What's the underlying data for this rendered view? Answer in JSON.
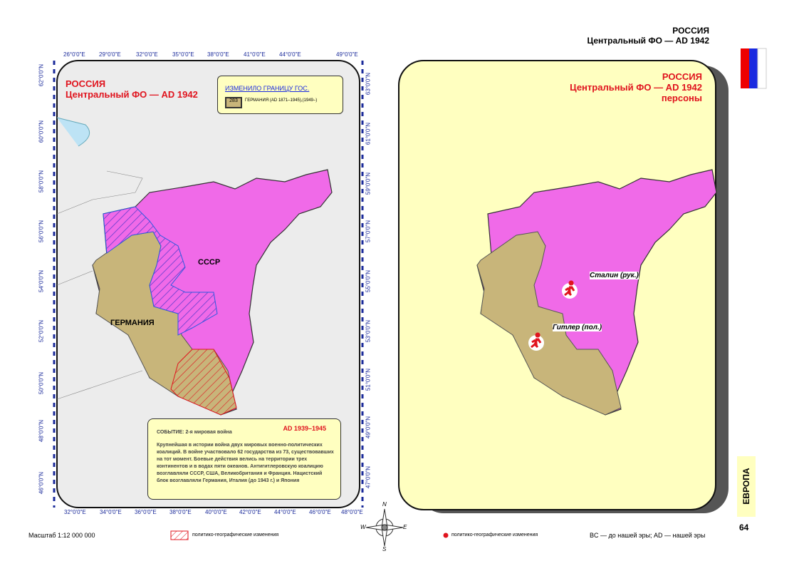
{
  "header": {
    "country": "РОССИЯ",
    "subtitle": "Центральный ФО —  AD 1942"
  },
  "left_map": {
    "title": "РОССИЯ",
    "subtitle": "Центральный ФО — AD 1942",
    "legend": {
      "heading": "ИЗМЕНИЛО ГРАНИЦУ ГОС.",
      "code": "283",
      "entry": "ГЕРМАНИЯ  (AD 1871–1945),(1949–)"
    },
    "labels": [
      "СССР",
      "ГЕРМАНИЯ"
    ],
    "top_lon": [
      "26°0'0\"E",
      "29°0'0\"E",
      "32°0'0\"E",
      "35°0'0\"E",
      "38°0'0\"E",
      "41°0'0\"E",
      "44°0'0\"E",
      "49°0'0\"E"
    ],
    "bottom_lon": [
      "32°0'0\"E",
      "34°0'0\"E",
      "36°0'0\"E",
      "38°0'0\"E",
      "40°0'0\"E",
      "42°0'0\"E",
      "44°0'0\"E",
      "46°0'0\"E",
      "48°0'0\"E"
    ],
    "left_lat": [
      "62°0'0\"N",
      "60°0'0\"N",
      "58°0'0\"N",
      "56°0'0\"N",
      "54°0'0\"N",
      "52°0'0\"N",
      "50°0'0\"N",
      "48°0'0\"N",
      "46°0'0\"N"
    ],
    "right_lat": [
      "63°0'0\"N",
      "61°0'0\"N",
      "59°0'0\"N",
      "57°0'0\"N",
      "55°0'0\"N",
      "53°0'0\"N",
      "51°0'0\"N",
      "49°0'0\"N",
      "47°0'0\"N"
    ],
    "event": {
      "period": "AD 1939–1945",
      "title": "СОБЫТИЕ: 2-я мировая война",
      "text": "Крупнейшая в истории война двух мировых военно-политических коалиций. В войне участвовало 62 государства из 73, существовавших на тот момент. Боевые действия велись на территории трех континентов и в водах пяти океанов. Антигитлеровскую коалицию возглавляли СССР, США, Великобритания и Франция. Нацистский блок возглавляли Германия, Италия (до 1943 г.) и Япония"
    }
  },
  "right_map": {
    "title": "РОССИЯ",
    "subtitle": "Центральный ФО — AD 1942",
    "caption": "персоны",
    "persons": [
      "Сталин (рук.)",
      "Гитлер (пол.)"
    ]
  },
  "compass": [
    "N",
    "W",
    "E",
    "S"
  ],
  "footer": {
    "scale": "Масштаб 1:12 000 000",
    "legend_left": "политико-географические изменения",
    "legend_right": "политико-географические изменения",
    "era_note": "BC — до нашей эры; AD — нашей эры",
    "section": "ЕВРОПА",
    "page": "64"
  }
}
